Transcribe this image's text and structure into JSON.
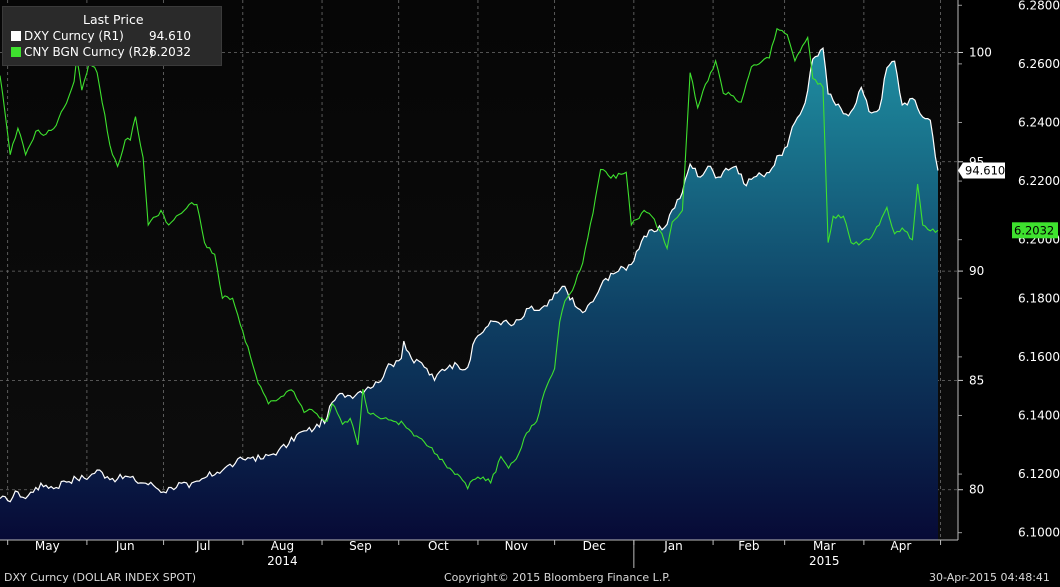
{
  "legend": {
    "header": "Last Price",
    "rows": [
      {
        "label": "DXY Curncy  (R1)",
        "value": "94.610",
        "color": "#ffffff"
      },
      {
        "label": "CNY BGN Curncy  (R2)",
        "value": "6.2032",
        "color": "#3ee12e"
      }
    ]
  },
  "footer": {
    "security": "DXY Curncy (DOLLAR INDEX SPOT)",
    "copyright": "Copyright© 2015 Bloomberg Finance L.P.",
    "timestamp": "30-Apr-2015 04:48:41"
  },
  "chart_data": {
    "type": "area",
    "x_range": [
      "2014-04-28",
      "2015-04-30"
    ],
    "x_ticks": [
      "May",
      "Jun",
      "Jul",
      "Aug",
      "Sep",
      "Oct",
      "Nov",
      "Dec",
      "Jan",
      "Feb",
      "Mar",
      "Apr"
    ],
    "year_labels": [
      {
        "label": "2014",
        "anchor": "Aug"
      },
      {
        "label": "2015",
        "anchor": "Mar"
      }
    ],
    "axes": {
      "R1": {
        "ylim": [
          77.7,
          102.4
        ],
        "ticks": [
          "80",
          "85",
          "90",
          "95",
          "100"
        ]
      },
      "R2": {
        "ylim": [
          6.0975,
          6.2818
        ],
        "ticks": [
          "6.1000",
          "6.1200",
          "6.1400",
          "6.1600",
          "6.1800",
          "6.2000",
          "6.2200",
          "6.2400",
          "6.2600",
          "6.2800"
        ]
      }
    },
    "grid": true,
    "legend_position": "top-left",
    "series": [
      {
        "name": "DXY Curncy (R1)",
        "axis": "R1",
        "color": "#ffffff",
        "fill": "gradient-teal",
        "last": "94.610",
        "points": [
          [
            "2014-04-28",
            79.6
          ],
          [
            "2014-05-01",
            79.5
          ],
          [
            "2014-05-05",
            79.9
          ],
          [
            "2014-05-08",
            79.6
          ],
          [
            "2014-05-12",
            80.1
          ],
          [
            "2014-05-16",
            80.2
          ],
          [
            "2014-05-20",
            80.1
          ],
          [
            "2014-05-23",
            80.4
          ],
          [
            "2014-05-28",
            80.5
          ],
          [
            "2014-06-02",
            80.6
          ],
          [
            "2014-06-05",
            80.9
          ],
          [
            "2014-06-09",
            80.6
          ],
          [
            "2014-06-13",
            80.5
          ],
          [
            "2014-06-17",
            80.6
          ],
          [
            "2014-06-20",
            80.4
          ],
          [
            "2014-06-24",
            80.3
          ],
          [
            "2014-06-27",
            80.2
          ],
          [
            "2014-07-01",
            79.9
          ],
          [
            "2014-07-04",
            80.1
          ],
          [
            "2014-07-08",
            80.3
          ],
          [
            "2014-07-11",
            80.1
          ],
          [
            "2014-07-15",
            80.4
          ],
          [
            "2014-07-18",
            80.6
          ],
          [
            "2014-07-22",
            80.8
          ],
          [
            "2014-07-25",
            81.0
          ],
          [
            "2014-07-29",
            81.2
          ],
          [
            "2014-08-01",
            81.4
          ],
          [
            "2014-08-05",
            81.5
          ],
          [
            "2014-08-08",
            81.4
          ],
          [
            "2014-08-12",
            81.6
          ],
          [
            "2014-08-15",
            81.8
          ],
          [
            "2014-08-19",
            82.1
          ],
          [
            "2014-08-22",
            82.5
          ],
          [
            "2014-08-26",
            82.7
          ],
          [
            "2014-08-29",
            82.8
          ],
          [
            "2014-09-03",
            83.3
          ],
          [
            "2014-09-05",
            84.0
          ],
          [
            "2014-09-09",
            84.4
          ],
          [
            "2014-09-12",
            84.3
          ],
          [
            "2014-09-16",
            84.5
          ],
          [
            "2014-09-19",
            84.7
          ],
          [
            "2014-09-23",
            84.9
          ],
          [
            "2014-09-26",
            85.5
          ],
          [
            "2014-09-30",
            85.9
          ],
          [
            "2014-10-02",
            86.0
          ],
          [
            "2014-10-03",
            86.8
          ],
          [
            "2014-10-07",
            85.8
          ],
          [
            "2014-10-10",
            85.8
          ],
          [
            "2014-10-15",
            85.0
          ],
          [
            "2014-10-17",
            85.4
          ],
          [
            "2014-10-21",
            85.7
          ],
          [
            "2014-10-24",
            85.7
          ],
          [
            "2014-10-28",
            85.6
          ],
          [
            "2014-10-31",
            86.9
          ],
          [
            "2014-11-04",
            87.4
          ],
          [
            "2014-11-07",
            87.7
          ],
          [
            "2014-11-11",
            87.7
          ],
          [
            "2014-11-14",
            87.5
          ],
          [
            "2014-11-18",
            87.8
          ],
          [
            "2014-11-21",
            88.3
          ],
          [
            "2014-11-25",
            88.2
          ],
          [
            "2014-11-28",
            88.4
          ],
          [
            "2014-12-02",
            89.0
          ],
          [
            "2014-12-05",
            89.3
          ],
          [
            "2014-12-09",
            88.4
          ],
          [
            "2014-12-12",
            88.1
          ],
          [
            "2014-12-16",
            88.6
          ],
          [
            "2014-12-19",
            89.3
          ],
          [
            "2014-12-23",
            89.9
          ],
          [
            "2014-12-26",
            90.0
          ],
          [
            "2014-12-31",
            90.3
          ],
          [
            "2015-01-02",
            90.9
          ],
          [
            "2015-01-05",
            91.6
          ],
          [
            "2015-01-09",
            91.8
          ],
          [
            "2015-01-13",
            92.0
          ],
          [
            "2015-01-16",
            92.8
          ],
          [
            "2015-01-20",
            93.6
          ],
          [
            "2015-01-23",
            94.9
          ],
          [
            "2015-01-27",
            94.3
          ],
          [
            "2015-01-30",
            94.8
          ],
          [
            "2015-02-03",
            94.3
          ],
          [
            "2015-02-06",
            94.7
          ],
          [
            "2015-02-10",
            94.8
          ],
          [
            "2015-02-13",
            94.0
          ],
          [
            "2015-02-17",
            94.3
          ],
          [
            "2015-02-20",
            94.4
          ],
          [
            "2015-02-24",
            94.7
          ],
          [
            "2015-02-27",
            95.3
          ],
          [
            "2015-03-02",
            95.7
          ],
          [
            "2015-03-05",
            96.8
          ],
          [
            "2015-03-09",
            97.7
          ],
          [
            "2015-03-12",
            99.7
          ],
          [
            "2015-03-16",
            100.2
          ],
          [
            "2015-03-18",
            98.1
          ],
          [
            "2015-03-20",
            97.8
          ],
          [
            "2015-03-24",
            97.2
          ],
          [
            "2015-03-27",
            97.3
          ],
          [
            "2015-03-31",
            98.4
          ],
          [
            "2015-04-03",
            97.3
          ],
          [
            "2015-04-07",
            97.4
          ],
          [
            "2015-04-10",
            99.3
          ],
          [
            "2015-04-13",
            99.6
          ],
          [
            "2015-04-16",
            97.6
          ],
          [
            "2015-04-20",
            97.9
          ],
          [
            "2015-04-23",
            97.2
          ],
          [
            "2015-04-27",
            96.9
          ],
          [
            "2015-04-30",
            94.6
          ]
        ]
      },
      {
        "name": "CNY BGN Curncy (R2)",
        "axis": "R2",
        "color": "#3ee12e",
        "last": "6.2032",
        "points": [
          [
            "2014-04-28",
            6.256
          ],
          [
            "2014-05-01",
            6.236
          ],
          [
            "2014-05-02",
            6.229
          ],
          [
            "2014-05-05",
            6.238
          ],
          [
            "2014-05-08",
            6.229
          ],
          [
            "2014-05-12",
            6.237
          ],
          [
            "2014-05-16",
            6.236
          ],
          [
            "2014-05-20",
            6.239
          ],
          [
            "2014-05-23",
            6.245
          ],
          [
            "2014-05-27",
            6.254
          ],
          [
            "2014-05-28",
            6.262
          ],
          [
            "2014-05-30",
            6.251
          ],
          [
            "2014-06-02",
            6.261
          ],
          [
            "2014-06-05",
            6.257
          ],
          [
            "2014-06-09",
            6.237
          ],
          [
            "2014-06-11",
            6.229
          ],
          [
            "2014-06-13",
            6.225
          ],
          [
            "2014-06-16",
            6.234
          ],
          [
            "2014-06-18",
            6.234
          ],
          [
            "2014-06-20",
            6.242
          ],
          [
            "2014-06-23",
            6.228
          ],
          [
            "2014-06-25",
            6.205
          ],
          [
            "2014-06-30",
            6.21
          ],
          [
            "2014-07-03",
            6.205
          ],
          [
            "2014-07-08",
            6.209
          ],
          [
            "2014-07-11",
            6.212
          ],
          [
            "2014-07-14",
            6.212
          ],
          [
            "2014-07-17",
            6.199
          ],
          [
            "2014-07-21",
            6.195
          ],
          [
            "2014-07-24",
            6.18
          ],
          [
            "2014-07-28",
            6.18
          ],
          [
            "2014-07-31",
            6.171
          ],
          [
            "2014-08-04",
            6.16
          ],
          [
            "2014-08-07",
            6.151
          ],
          [
            "2014-08-11",
            6.144
          ],
          [
            "2014-08-14",
            6.145
          ],
          [
            "2014-08-18",
            6.148
          ],
          [
            "2014-08-21",
            6.148
          ],
          [
            "2014-08-25",
            6.141
          ],
          [
            "2014-08-28",
            6.142
          ],
          [
            "2014-09-01",
            6.139
          ],
          [
            "2014-09-03",
            6.138
          ],
          [
            "2014-09-05",
            6.144
          ],
          [
            "2014-09-09",
            6.137
          ],
          [
            "2014-09-12",
            6.139
          ],
          [
            "2014-09-15",
            6.13
          ],
          [
            "2014-09-17",
            6.149
          ],
          [
            "2014-09-19",
            6.141
          ],
          [
            "2014-09-22",
            6.14
          ],
          [
            "2014-09-25",
            6.139
          ],
          [
            "2014-09-29",
            6.138
          ],
          [
            "2014-10-03",
            6.137
          ],
          [
            "2014-10-07",
            6.133
          ],
          [
            "2014-10-10",
            6.132
          ],
          [
            "2014-10-14",
            6.129
          ],
          [
            "2014-10-17",
            6.125
          ],
          [
            "2014-10-21",
            6.122
          ],
          [
            "2014-10-24",
            6.12
          ],
          [
            "2014-10-28",
            6.115
          ],
          [
            "2014-10-30",
            6.118
          ],
          [
            "2014-11-03",
            6.119
          ],
          [
            "2014-11-06",
            6.117
          ],
          [
            "2014-11-10",
            6.126
          ],
          [
            "2014-11-13",
            6.122
          ],
          [
            "2014-11-17",
            6.127
          ],
          [
            "2014-11-20",
            6.134
          ],
          [
            "2014-11-24",
            6.138
          ],
          [
            "2014-11-27",
            6.148
          ],
          [
            "2014-12-01",
            6.156
          ],
          [
            "2014-12-03",
            6.172
          ],
          [
            "2014-12-05",
            6.179
          ],
          [
            "2014-12-09",
            6.185
          ],
          [
            "2014-12-12",
            6.192
          ],
          [
            "2014-12-16",
            6.209
          ],
          [
            "2014-12-19",
            6.224
          ],
          [
            "2014-12-23",
            6.221
          ],
          [
            "2014-12-29",
            6.223
          ],
          [
            "2014-12-31",
            6.205
          ],
          [
            "2015-01-05",
            6.21
          ],
          [
            "2015-01-08",
            6.208
          ],
          [
            "2015-01-12",
            6.202
          ],
          [
            "2015-01-14",
            6.197
          ],
          [
            "2015-01-16",
            6.206
          ],
          [
            "2015-01-20",
            6.21
          ],
          [
            "2015-01-23",
            6.257
          ],
          [
            "2015-01-26",
            6.245
          ],
          [
            "2015-01-29",
            6.253
          ],
          [
            "2015-02-02",
            6.261
          ],
          [
            "2015-02-05",
            6.25
          ],
          [
            "2015-02-09",
            6.249
          ],
          [
            "2015-02-12",
            6.247
          ],
          [
            "2015-02-16",
            6.259
          ],
          [
            "2015-02-19",
            6.26
          ],
          [
            "2015-02-23",
            6.262
          ],
          [
            "2015-02-26",
            6.272
          ],
          [
            "2015-03-02",
            6.27
          ],
          [
            "2015-03-05",
            6.261
          ],
          [
            "2015-03-10",
            6.269
          ],
          [
            "2015-03-12",
            6.255
          ],
          [
            "2015-03-16",
            6.252
          ],
          [
            "2015-03-18",
            6.199
          ],
          [
            "2015-03-20",
            6.208
          ],
          [
            "2015-03-24",
            6.208
          ],
          [
            "2015-03-27",
            6.199
          ],
          [
            "2015-03-31",
            6.199
          ],
          [
            "2015-04-03",
            6.2
          ],
          [
            "2015-04-07",
            6.205
          ],
          [
            "2015-04-10",
            6.211
          ],
          [
            "2015-04-13",
            6.202
          ],
          [
            "2015-04-16",
            6.204
          ],
          [
            "2015-04-20",
            6.2
          ],
          [
            "2015-04-22",
            6.219
          ],
          [
            "2015-04-24",
            6.205
          ],
          [
            "2015-04-27",
            6.203
          ],
          [
            "2015-04-30",
            6.2032
          ]
        ]
      }
    ]
  }
}
